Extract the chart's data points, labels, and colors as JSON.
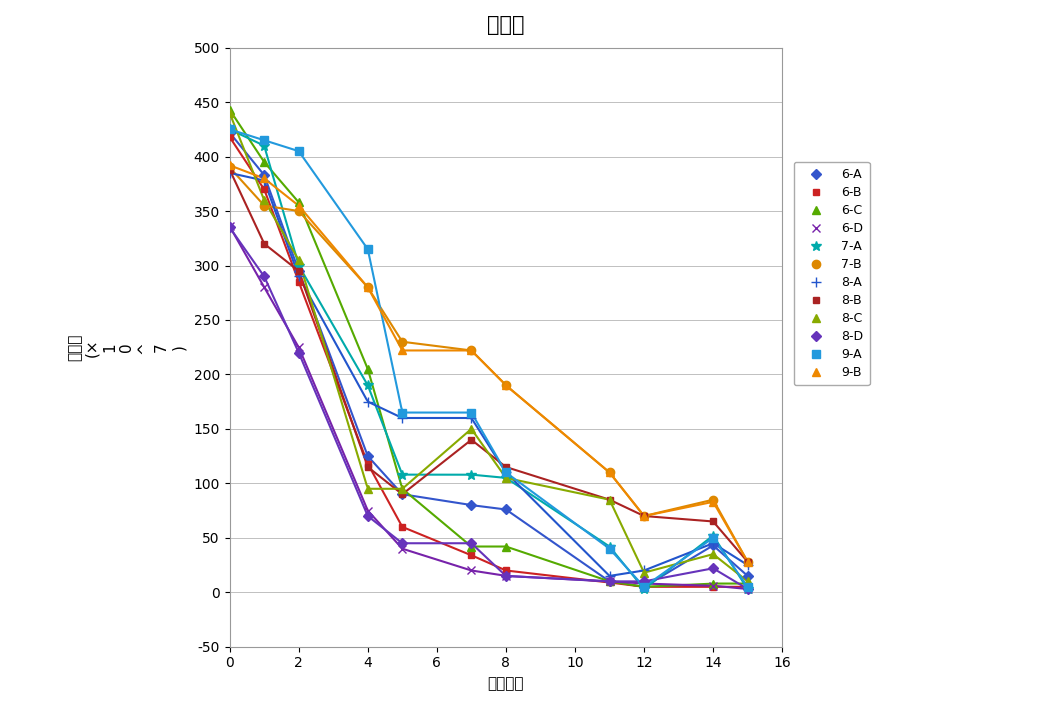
{
  "title": "가속성",
  "xlabel": "경과일수",
  "ylabel": "생균수\n(×\n1\n0\n^\n7\n)",
  "xlim": [
    0,
    16
  ],
  "ylim": [
    -50,
    500
  ],
  "xticks": [
    0,
    2,
    4,
    6,
    8,
    10,
    12,
    14,
    16
  ],
  "yticks": [
    -50,
    0,
    50,
    100,
    150,
    200,
    250,
    300,
    350,
    400,
    450,
    500
  ],
  "series": [
    {
      "label": "6-A",
      "color": "#3355CC",
      "marker": "D",
      "markersize": 5,
      "x": [
        0,
        1,
        2,
        4,
        5,
        7,
        8,
        11,
        12,
        14,
        15
      ],
      "y": [
        422,
        383,
        295,
        125,
        90,
        80,
        76,
        10,
        5,
        43,
        15
      ]
    },
    {
      "label": "6-B",
      "color": "#CC2222",
      "marker": "s",
      "markersize": 5,
      "x": [
        0,
        1,
        2,
        4,
        5,
        7,
        8,
        11,
        12,
        14,
        15
      ],
      "y": [
        418,
        370,
        285,
        118,
        60,
        34,
        20,
        9,
        5,
        5,
        5
      ]
    },
    {
      "label": "6-C",
      "color": "#55AA00",
      "marker": "^",
      "markersize": 6,
      "x": [
        0,
        1,
        2,
        4,
        5,
        7,
        8,
        11,
        12,
        14,
        15
      ],
      "y": [
        443,
        395,
        358,
        205,
        95,
        42,
        42,
        10,
        5,
        8,
        8
      ]
    },
    {
      "label": "6-D",
      "color": "#7722AA",
      "marker": "x",
      "markersize": 6,
      "x": [
        0,
        1,
        2,
        4,
        5,
        7,
        8,
        11,
        12,
        14,
        15
      ],
      "y": [
        336,
        280,
        225,
        75,
        40,
        20,
        15,
        10,
        8,
        6,
        3
      ]
    },
    {
      "label": "7-A",
      "color": "#00AAAA",
      "marker": "*",
      "markersize": 7,
      "x": [
        0,
        1,
        2,
        4,
        5,
        7,
        8,
        11,
        12,
        14,
        15
      ],
      "y": [
        425,
        410,
        300,
        190,
        108,
        108,
        105,
        42,
        3,
        52,
        3
      ]
    },
    {
      "label": "7-B",
      "color": "#DD8800",
      "marker": "o",
      "markersize": 6,
      "x": [
        0,
        1,
        2,
        4,
        5,
        7,
        8,
        11,
        12,
        14,
        15
      ],
      "y": [
        390,
        355,
        350,
        280,
        230,
        222,
        190,
        110,
        70,
        85,
        28
      ]
    },
    {
      "label": "8-A",
      "color": "#2255CC",
      "marker": "+",
      "markersize": 7,
      "x": [
        0,
        1,
        2,
        4,
        5,
        7,
        8,
        11,
        12,
        14,
        15
      ],
      "y": [
        385,
        378,
        290,
        175,
        160,
        160,
        110,
        15,
        20,
        45,
        25
      ]
    },
    {
      "label": "8-B",
      "color": "#AA2222",
      "marker": "s",
      "markersize": 5,
      "x": [
        0,
        1,
        2,
        4,
        5,
        7,
        8,
        11,
        12,
        14,
        15
      ],
      "y": [
        388,
        320,
        295,
        115,
        90,
        140,
        115,
        85,
        70,
        65,
        28
      ]
    },
    {
      "label": "8-C",
      "color": "#88AA00",
      "marker": "^",
      "markersize": 6,
      "x": [
        0,
        1,
        2,
        4,
        5,
        7,
        8,
        11,
        12,
        14,
        15
      ],
      "y": [
        440,
        360,
        305,
        95,
        95,
        150,
        105,
        85,
        18,
        35,
        10
      ]
    },
    {
      "label": "8-D",
      "color": "#6633BB",
      "marker": "D",
      "markersize": 5,
      "x": [
        0,
        1,
        2,
        4,
        5,
        7,
        8,
        11,
        12,
        14,
        15
      ],
      "y": [
        335,
        290,
        220,
        70,
        45,
        45,
        15,
        10,
        10,
        22,
        3
      ]
    },
    {
      "label": "9-A",
      "color": "#2299DD",
      "marker": "s",
      "markersize": 6,
      "x": [
        0,
        1,
        2,
        4,
        5,
        7,
        8,
        11,
        12,
        14,
        15
      ],
      "y": [
        425,
        415,
        405,
        315,
        165,
        165,
        110,
        40,
        5,
        50,
        5
      ]
    },
    {
      "label": "9-B",
      "color": "#EE8800",
      "marker": "^",
      "markersize": 6,
      "x": [
        0,
        1,
        2,
        4,
        5,
        7,
        8,
        11,
        12,
        14,
        15
      ],
      "y": [
        392,
        380,
        355,
        280,
        222,
        222,
        190,
        110,
        70,
        83,
        28
      ]
    }
  ],
  "background_color": "#ffffff",
  "plot_bg_color": "#f8f8f8",
  "title_fontsize": 15,
  "tick_fontsize": 10,
  "label_fontsize": 11
}
